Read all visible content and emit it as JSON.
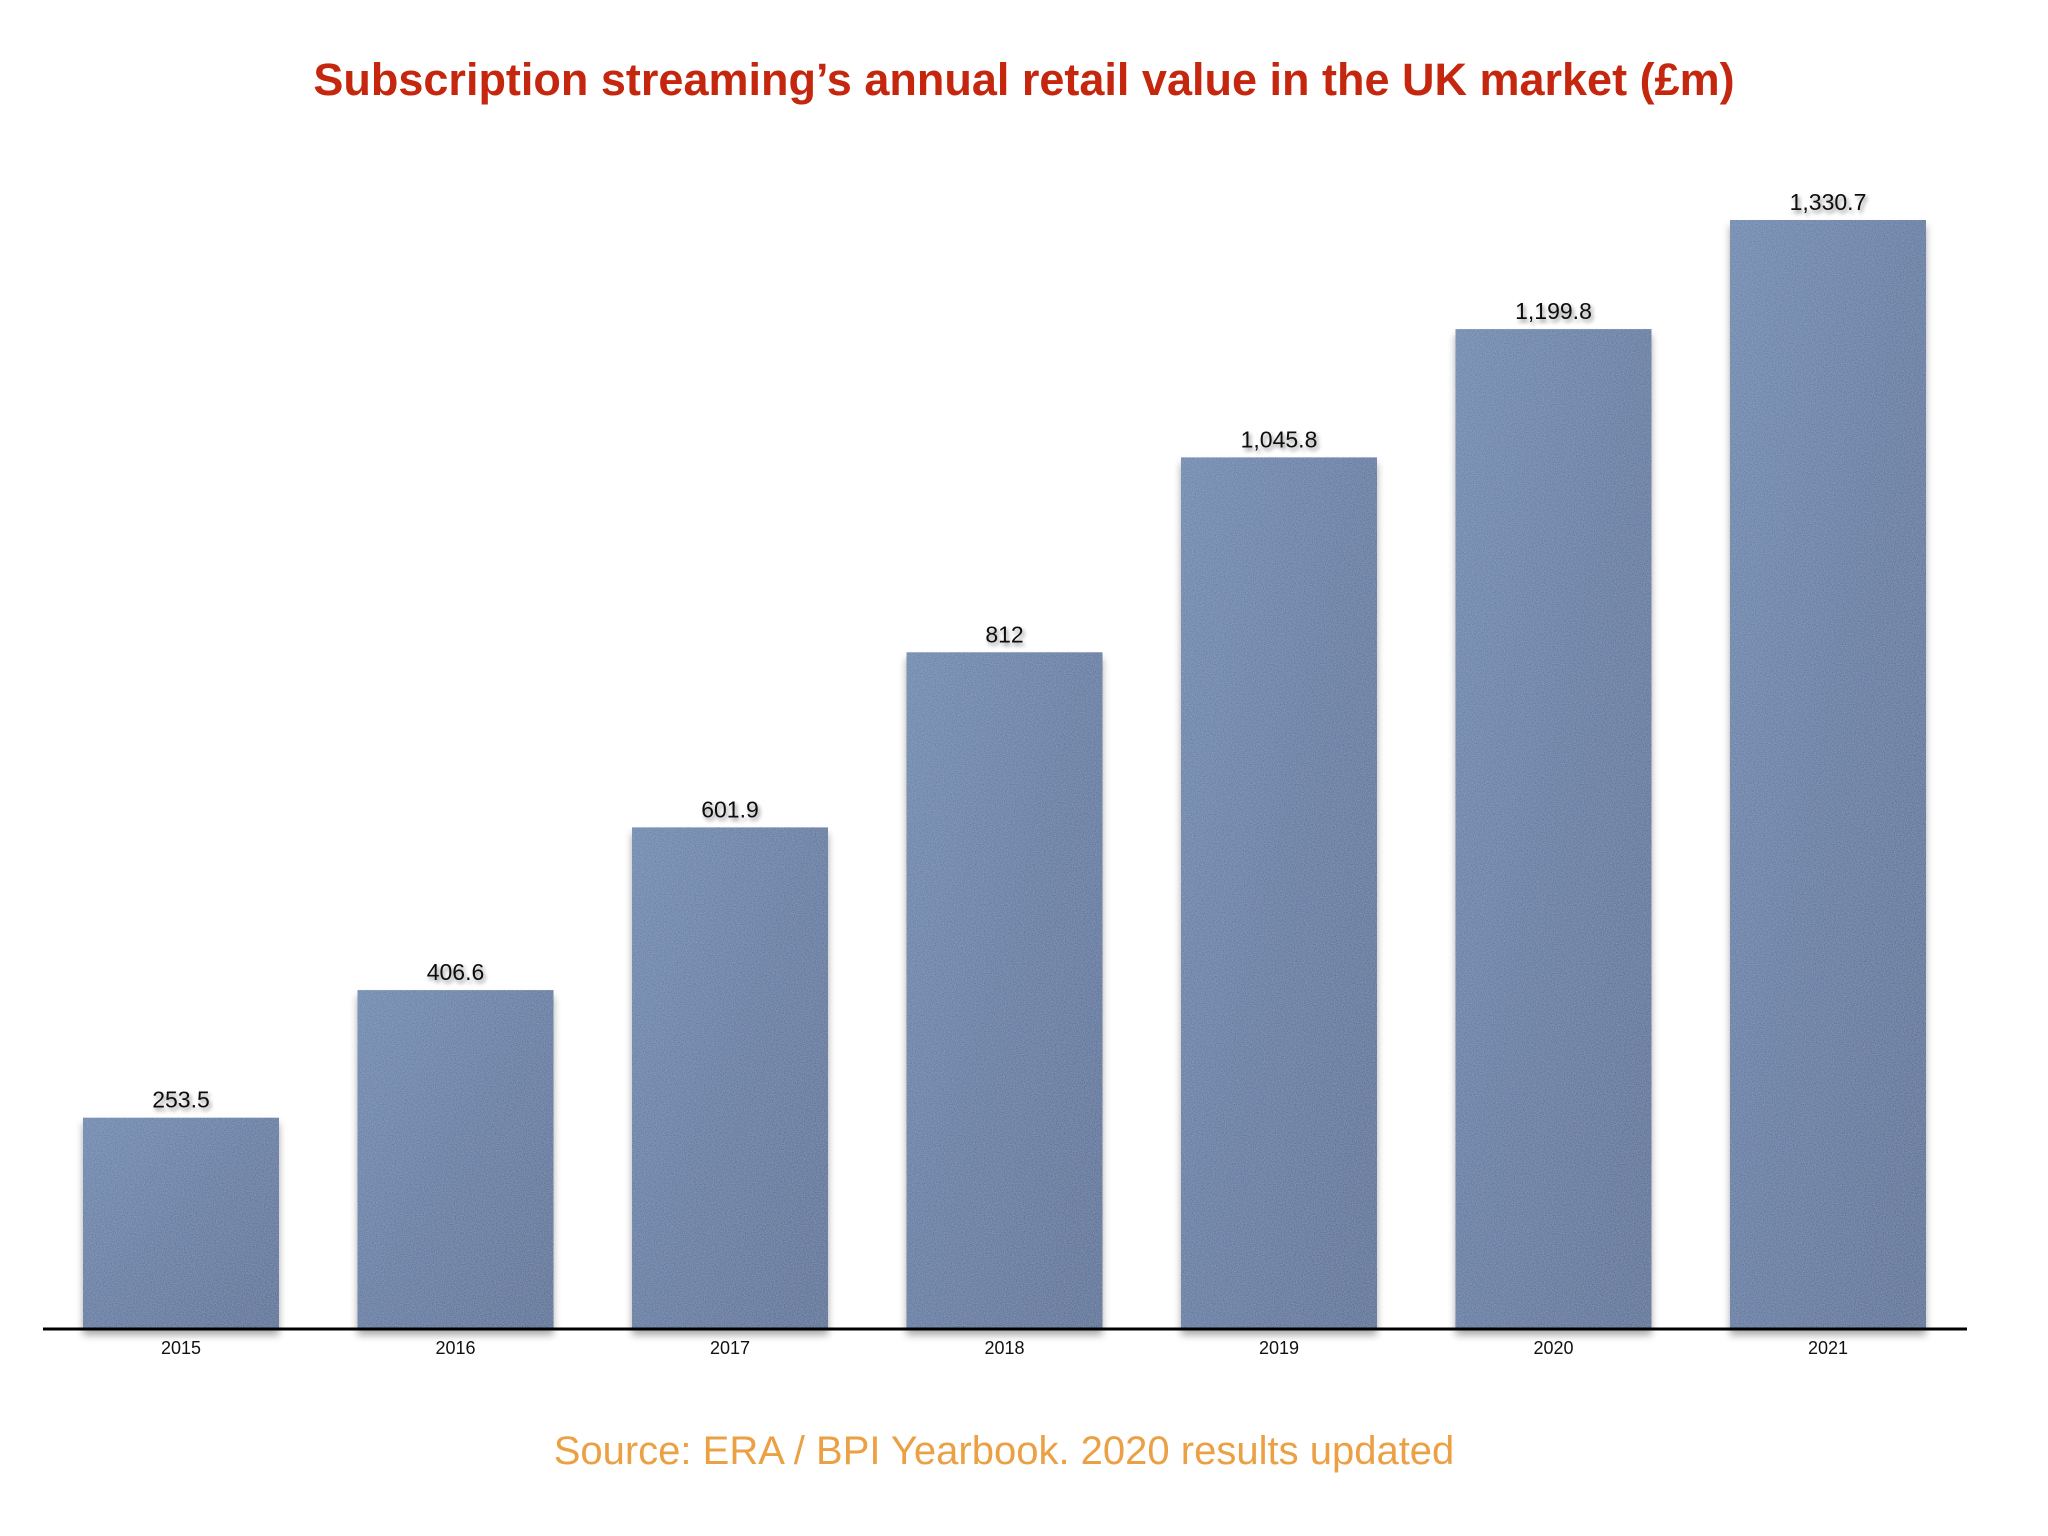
{
  "colors": {
    "title": "#C4260E",
    "bar": "#4B6A99",
    "bar_light": "#5A7BA8",
    "bar_dark": "#3F5D8C",
    "axis": "#000000",
    "source": "#EBA044"
  },
  "chart_data": {
    "type": "bar",
    "title": "Subscription streaming’s annual retail value in the UK market (£m)",
    "xlabel": "",
    "ylabel": "",
    "categories": [
      "2015",
      "2016",
      "2017",
      "2018",
      "2019",
      "2020",
      "2021"
    ],
    "values": [
      253.5,
      406.6,
      601.9,
      812,
      1045.8,
      1199.8,
      1330.7
    ],
    "value_labels": [
      "253.5",
      "406.6",
      "601.9",
      "812",
      "1,045.8",
      "1,199.8",
      "1,330.7"
    ],
    "ylim": [
      0,
      1330.7
    ],
    "grid": false,
    "legend": "none",
    "source": "Source: ERA / BPI Yearbook. 2020 results updated"
  }
}
